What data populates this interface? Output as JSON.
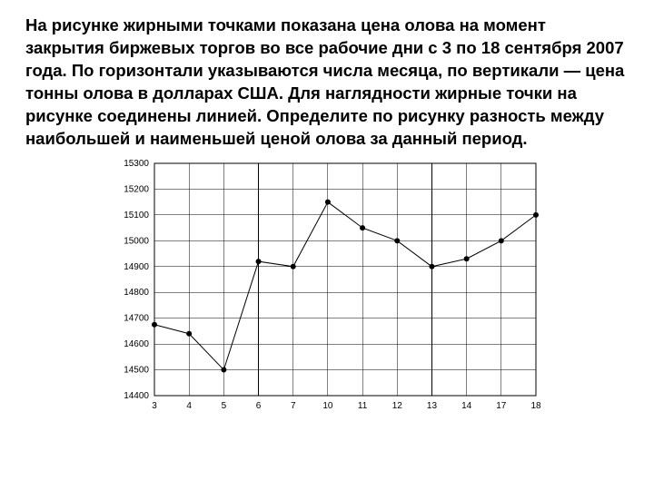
{
  "problem_text": "На рисунке жирными точками показана цена олова на момент закрытия биржевых торгов во все рабочие дни с 3 по 18 сентября 2007 года. По горизонтали указываются числа месяца, по вертикали — цена тонны олова в долларах США. Для наглядности жирные точки на рисунке соединены линией. Определите по рисунку разность между наибольшей и наименьшей ценой олова за данный период.",
  "chart": {
    "type": "line",
    "background_color": "#ffffff",
    "grid_color": "#000000",
    "axis_color": "#000000",
    "line_color": "#000000",
    "point_color": "#000000",
    "tick_fontsize": 10,
    "line_width": 1,
    "point_radius": 3,
    "x_labels": [
      "3",
      "4",
      "5",
      "6",
      "7",
      "10",
      "11",
      "12",
      "13",
      "14",
      "17",
      "18"
    ],
    "y_ticks": [
      14400,
      14500,
      14600,
      14700,
      14800,
      14900,
      15000,
      15100,
      15200,
      15300
    ],
    "ylim": [
      14400,
      15300
    ],
    "data": [
      {
        "x": "3",
        "y": 14675
      },
      {
        "x": "4",
        "y": 14640
      },
      {
        "x": "5",
        "y": 14500
      },
      {
        "x": "6",
        "y": 14920
      },
      {
        "x": "7",
        "y": 14900
      },
      {
        "x": "10",
        "y": 15150
      },
      {
        "x": "11",
        "y": 15050
      },
      {
        "x": "12",
        "y": 15000
      },
      {
        "x": "13",
        "y": 14900
      },
      {
        "x": "14",
        "y": 14930
      },
      {
        "x": "17",
        "y": 15000
      },
      {
        "x": "18",
        "y": 15100
      }
    ]
  }
}
